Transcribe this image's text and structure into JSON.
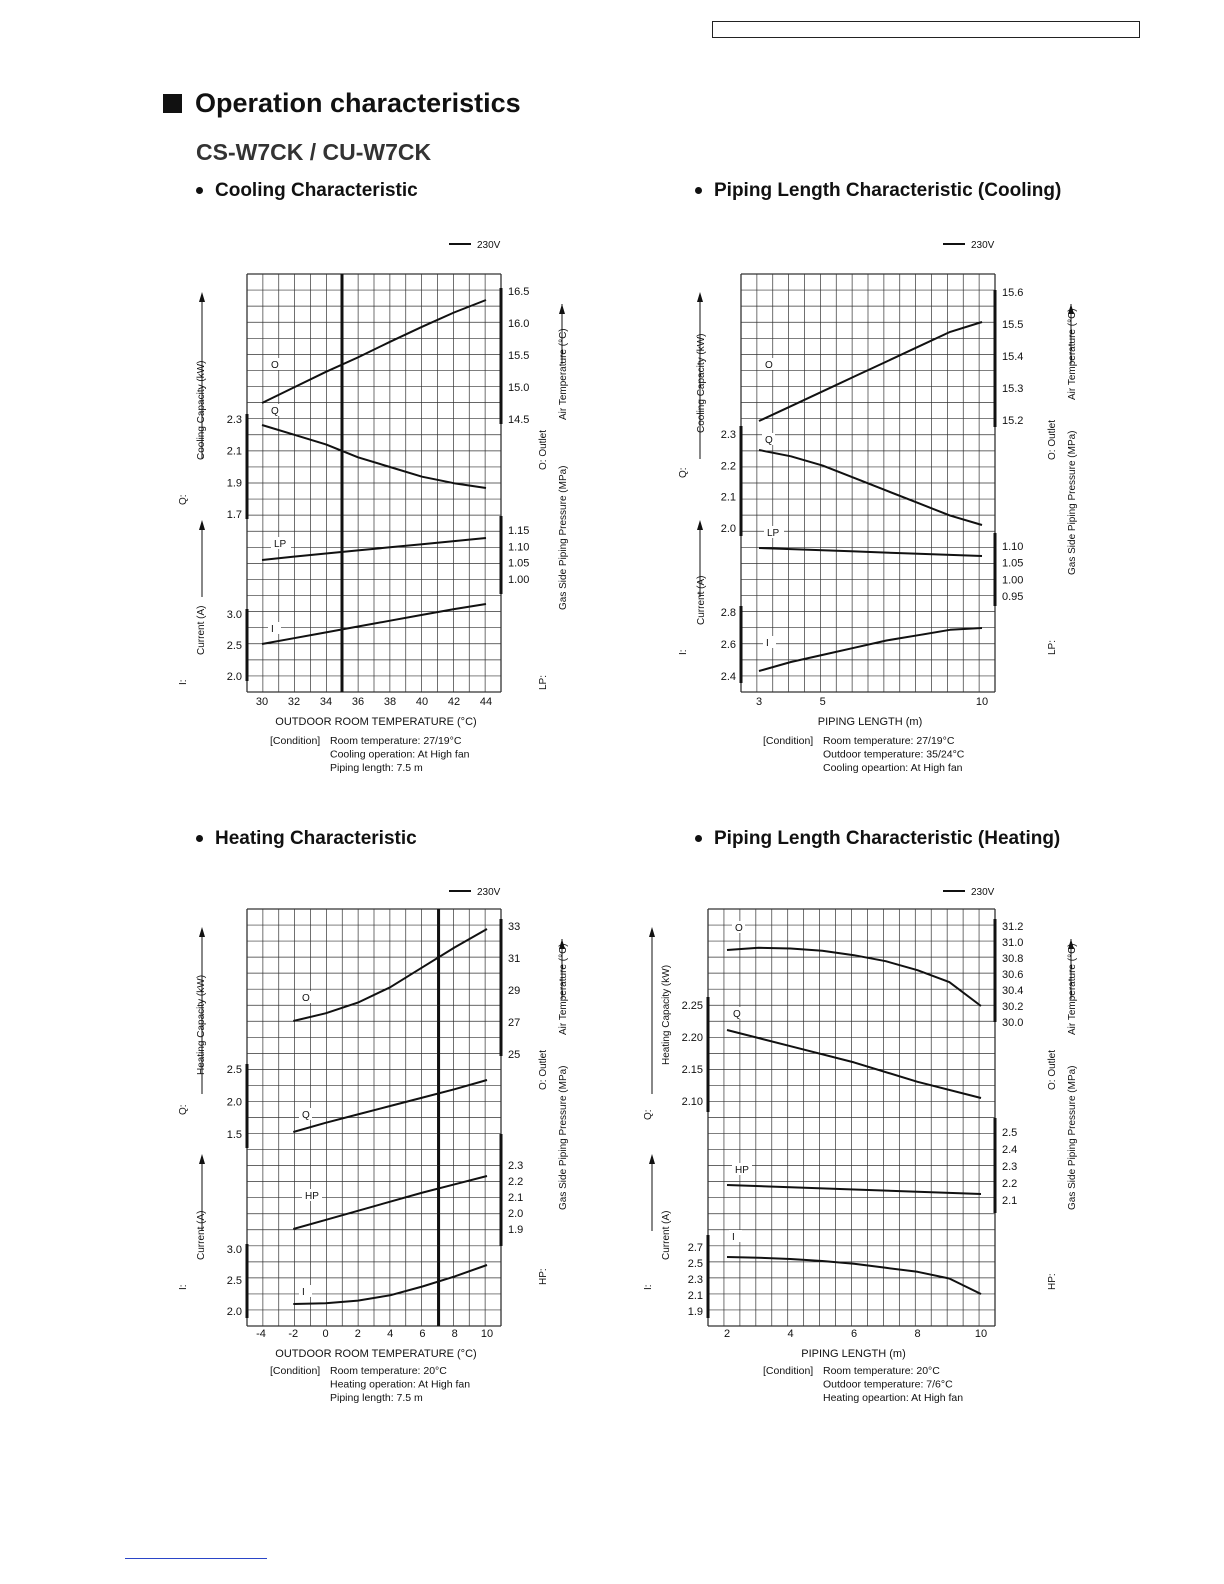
{
  "header": {
    "heading": "Operation characteristics",
    "model": "CS-W7CK / CU-W7CK"
  },
  "chart_data": [
    {
      "type": "line",
      "title": "Cooling Characteristic",
      "legend": "230V",
      "xlabel": "OUTDOOR  ROOM TEMPERATURE (°C)",
      "xticks": [
        "30",
        "32",
        "34",
        "36",
        "38",
        "40",
        "42",
        "44"
      ],
      "xlim": [
        29,
        45
      ],
      "marker_x": 35,
      "left_label_top": "Cooling Capacity (kW)",
      "left_label_top_prefix": "Q:",
      "left_label_bottom": "Current (A)",
      "left_label_bottom_prefix": "I:",
      "right_label_top": "Air Temperature (°C)",
      "right_label_top_prefix": "O: Outlet",
      "right_label_bottom": "Gas Side Piping Pressure (MPa)",
      "right_label_bottom_prefix": "LP:",
      "left_axes": [
        {
          "ticks": [
            "2.3",
            "2.1",
            "1.9",
            "1.7"
          ]
        },
        {
          "ticks": [
            "3.0",
            "2.5",
            "2.0"
          ]
        }
      ],
      "right_axes": [
        {
          "ticks": [
            "16.5",
            "16.0",
            "15.5",
            "15.0",
            "14.5"
          ]
        },
        {
          "ticks": [
            "1.15",
            "1.10",
            "1.05",
            "1.00"
          ]
        }
      ],
      "series": [
        {
          "name": "O",
          "axis": "Outlet Air Temperature (°C)",
          "x": [
            30,
            32,
            34,
            36,
            38,
            40,
            42,
            44
          ],
          "y": [
            14.6,
            14.85,
            15.1,
            15.33,
            15.58,
            15.82,
            16.05,
            16.25
          ]
        },
        {
          "name": "Q",
          "axis": "Cooling Capacity (kW)",
          "x": [
            30,
            32,
            34,
            36,
            38,
            40,
            42,
            44
          ],
          "y": [
            2.27,
            2.21,
            2.15,
            2.07,
            2.01,
            1.95,
            1.91,
            1.88
          ]
        },
        {
          "name": "LP",
          "axis": "Gas Side Piping Pressure (MPa)",
          "x": [
            30,
            32,
            34,
            36,
            38,
            40,
            42,
            44
          ],
          "y": [
            1.052,
            1.062,
            1.071,
            1.08,
            1.089,
            1.098,
            1.107,
            1.116
          ]
        },
        {
          "name": "I",
          "axis": "Current (A)",
          "x": [
            30,
            32,
            34,
            36,
            38,
            40,
            42,
            44
          ],
          "y": [
            2.5,
            2.58,
            2.66,
            2.74,
            2.82,
            2.9,
            2.98,
            3.05
          ]
        }
      ],
      "condition_label": "[Condition]",
      "conditions": [
        "Room temperature: 27/19°C",
        "Cooling operation: At High fan",
        "Piping length: 7.5 m"
      ]
    },
    {
      "type": "line",
      "title": "Piping Length Characteristic (Cooling)",
      "legend": "230V",
      "xlabel": "PIPING LENGTH (m)",
      "xticks": [
        "3",
        "5",
        "10"
      ],
      "xlim": [
        2.3,
        10.5
      ],
      "left_label_top": "Cooling Capacity (kW)",
      "left_label_top_prefix": "Q:",
      "left_label_bottom": "Current (A)",
      "left_label_bottom_prefix": "I:",
      "right_label_top": "Air Temperature (°C)",
      "right_label_top_prefix": "O: Outlet",
      "right_label_bottom": "Gas Side Piping Pressure (MPa)",
      "right_label_bottom_prefix": "LP:",
      "left_axes": [
        {
          "ticks": [
            "2.3",
            "2.2",
            "2.1",
            "2.0"
          ]
        },
        {
          "ticks": [
            "2.8",
            "2.6",
            "2.4"
          ]
        }
      ],
      "right_axes": [
        {
          "ticks": [
            "15.6",
            "15.5",
            "15.4",
            "15.3",
            "15.2"
          ]
        },
        {
          "ticks": [
            "1.10",
            "1.05",
            "1.00",
            "0.95"
          ]
        }
      ],
      "series": [
        {
          "name": "O",
          "axis": "Outlet Air Temperature (°C)",
          "x": [
            3,
            4,
            5,
            6,
            7,
            8,
            9,
            10
          ],
          "y": [
            15.2,
            15.245,
            15.29,
            15.335,
            15.38,
            15.425,
            15.47,
            15.5
          ]
        },
        {
          "name": "Q",
          "axis": "Cooling Capacity (kW)",
          "x": [
            3,
            4,
            5,
            6,
            7,
            8,
            9,
            10
          ],
          "y": [
            2.25,
            2.23,
            2.2,
            2.16,
            2.12,
            2.08,
            2.04,
            2.01
          ]
        },
        {
          "name": "LP",
          "axis": "Gas Side Piping Pressure (MPa)",
          "x": [
            3,
            4,
            5,
            6,
            7,
            8,
            9,
            10
          ],
          "y": [
            1.1,
            1.098,
            1.096,
            1.094,
            1.092,
            1.09,
            1.088,
            1.086
          ]
        },
        {
          "name": "I",
          "axis": "Current (A)",
          "x": [
            3,
            4,
            5,
            6,
            7,
            8,
            9,
            10
          ],
          "y": [
            2.42,
            2.47,
            2.51,
            2.55,
            2.59,
            2.62,
            2.65,
            2.66
          ]
        }
      ],
      "condition_label": "[Condition]",
      "conditions": [
        "Room temperature: 27/19°C",
        "Outdoor temperature: 35/24°C",
        "Cooling opeartion: At High fan"
      ]
    },
    {
      "type": "line",
      "title": "Heating Characteristic",
      "legend": "230V",
      "xlabel": "OUTDOOR  ROOM TEMPERATURE (°C)",
      "xticks": [
        "-4",
        "-2",
        "0",
        "2",
        "4",
        "6",
        "8",
        "10"
      ],
      "xlim": [
        -5,
        11
      ],
      "marker_x": 7,
      "left_label_top": "Heating Capacity (kW)",
      "left_label_top_prefix": "Q:",
      "left_label_bottom": "Current (A)",
      "left_label_bottom_prefix": "I:",
      "right_label_top": "Air Temperature (°C)",
      "right_label_top_prefix": "O: Outlet",
      "right_label_bottom": "Gas Side Piping Pressure (MPa)",
      "right_label_bottom_prefix": "HP:",
      "left_axes": [
        {
          "ticks": [
            "2.5",
            "2.0",
            "1.5"
          ]
        },
        {
          "ticks": [
            "3.0",
            "2.5",
            "2.0"
          ]
        }
      ],
      "right_axes": [
        {
          "ticks": [
            "33",
            "31",
            "29",
            "27",
            "25"
          ]
        },
        {
          "ticks": [
            "2.3",
            "2.2",
            "2.1",
            "2.0",
            "1.9"
          ]
        }
      ],
      "series": [
        {
          "name": "O",
          "axis": "Outlet Air Temperature (°C)",
          "x": [
            -2,
            0,
            2,
            4,
            6,
            8,
            10
          ],
          "y": [
            27.0,
            27.5,
            28.2,
            29.2,
            30.5,
            31.8,
            33.0
          ]
        },
        {
          "name": "Q",
          "axis": "Heating Capacity (kW)",
          "x": [
            -2,
            0,
            2,
            4,
            6,
            8,
            10
          ],
          "y": [
            1.5,
            1.62,
            1.73,
            1.84,
            1.95,
            2.06,
            2.18
          ]
        },
        {
          "name": "HP",
          "axis": "Gas Side Piping Pressure (MPa)",
          "x": [
            -2,
            0,
            2,
            4,
            6,
            8,
            10
          ],
          "y": [
            1.95,
            2.005,
            2.06,
            2.115,
            2.17,
            2.22,
            2.27
          ]
        },
        {
          "name": "I",
          "axis": "Current (A)",
          "x": [
            -2,
            0,
            2,
            4,
            6,
            8,
            10
          ],
          "y": [
            2.07,
            2.08,
            2.12,
            2.2,
            2.33,
            2.48,
            2.65
          ]
        }
      ],
      "condition_label": "[Condition]",
      "conditions": [
        "Room temperature: 20°C",
        "Heating operation: At High fan",
        "Piping length: 7.5 m"
      ]
    },
    {
      "type": "line",
      "title": "Piping Length Characteristic (Heating)",
      "legend": "230V",
      "xlabel": "PIPING LENGTH (m)",
      "xticks": [
        "2",
        "4",
        "6",
        "8",
        "10"
      ],
      "xlim": [
        1.5,
        10.5
      ],
      "left_label_top": "Heating Capacity (kW)",
      "left_label_top_prefix": "Q:",
      "left_label_bottom": "Current (A)",
      "left_label_bottom_prefix": "I:",
      "right_label_top": "Air Temperature (°C)",
      "right_label_top_prefix": "O: Outlet",
      "right_label_bottom": "Gas Side Piping Pressure (MPa)",
      "right_label_bottom_prefix": "HP:",
      "left_axes": [
        {
          "ticks": [
            "2.25",
            "2.20",
            "2.15",
            "2.10"
          ]
        },
        {
          "ticks": [
            "2.7",
            "2.5",
            "2.3",
            "2.1",
            "1.9"
          ]
        }
      ],
      "right_axes": [
        {
          "ticks": [
            "31.2",
            "31.0",
            "30.8",
            "30.6",
            "30.4",
            "30.2",
            "30.0"
          ]
        },
        {
          "ticks": [
            "2.5",
            "2.4",
            "2.3",
            "2.2",
            "2.1"
          ]
        }
      ],
      "series": [
        {
          "name": "O",
          "axis": "Outlet Air Temperature (°C)",
          "x": [
            2,
            3,
            4,
            5,
            6,
            7,
            8,
            9,
            10
          ],
          "y": [
            30.95,
            30.98,
            30.97,
            30.94,
            30.88,
            30.8,
            30.68,
            30.52,
            30.2
          ]
        },
        {
          "name": "Q",
          "axis": "Heating Capacity (kW)",
          "x": [
            2,
            4,
            6,
            8,
            10
          ],
          "y": [
            2.21,
            2.185,
            2.16,
            2.13,
            2.105
          ]
        },
        {
          "name": "HP",
          "axis": "Gas Side Piping Pressure (MPa)",
          "x": [
            2,
            4,
            6,
            8,
            10
          ],
          "y": [
            2.25,
            2.24,
            2.23,
            2.22,
            2.21
          ]
        },
        {
          "name": "I",
          "axis": "Current (A)",
          "x": [
            2,
            3,
            4,
            5,
            6,
            7,
            8,
            9,
            10
          ],
          "y": [
            2.65,
            2.64,
            2.62,
            2.59,
            2.55,
            2.49,
            2.43,
            2.33,
            2.1
          ]
        }
      ],
      "condition_label": "[Condition]",
      "conditions": [
        "Room temperature: 20°C",
        "Outdoor temperature: 7/6°C",
        "Heating opeartion: At High fan"
      ]
    }
  ]
}
